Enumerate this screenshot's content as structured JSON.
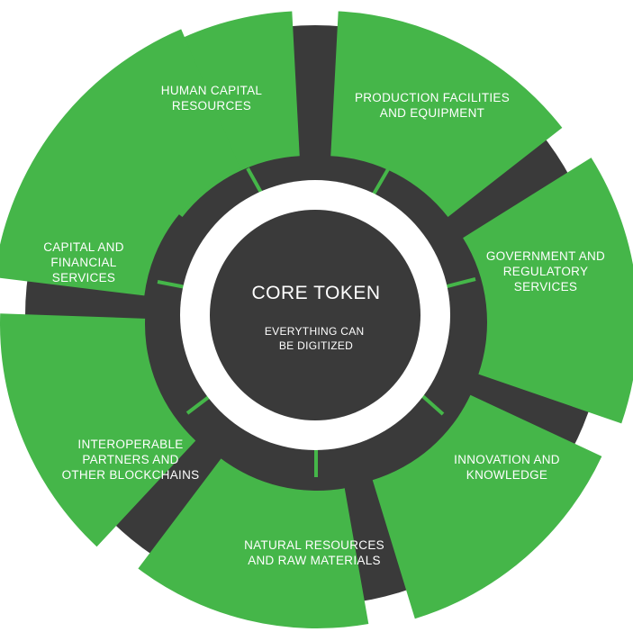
{
  "colors": {
    "green": "#45b649",
    "dark": "#3a3a3a",
    "white": "#ffffff"
  },
  "core": {
    "title": "CORE TOKEN",
    "subtitle_lines": [
      "EVERYTHING CAN",
      "BE DIGITIZED"
    ]
  },
  "segments": [
    {
      "id": "human-capital",
      "label_lines": [
        "HUMAN CAPITAL",
        "RESOURCES"
      ]
    },
    {
      "id": "production-facilities",
      "label_lines": [
        "PRODUCTION FACILITIES",
        "AND EQUIPMENT"
      ]
    },
    {
      "id": "government-regulatory",
      "label_lines": [
        "GOVERNMENT AND",
        "REGULATORY",
        "SERVICES"
      ]
    },
    {
      "id": "innovation-knowledge",
      "label_lines": [
        "INNOVATION AND",
        "KNOWLEDGE"
      ]
    },
    {
      "id": "natural-resources",
      "label_lines": [
        "NATURAL RESOURCES",
        "AND RAW MATERIALS"
      ]
    },
    {
      "id": "interoperable-partners",
      "label_lines": [
        "INTEROPERABLE",
        "PARTNERS AND",
        "OTHER BLOCKCHAINS"
      ]
    },
    {
      "id": "capital-financial",
      "label_lines": [
        "CAPITAL AND",
        "FINANCIAL",
        "SERVICES"
      ]
    }
  ]
}
